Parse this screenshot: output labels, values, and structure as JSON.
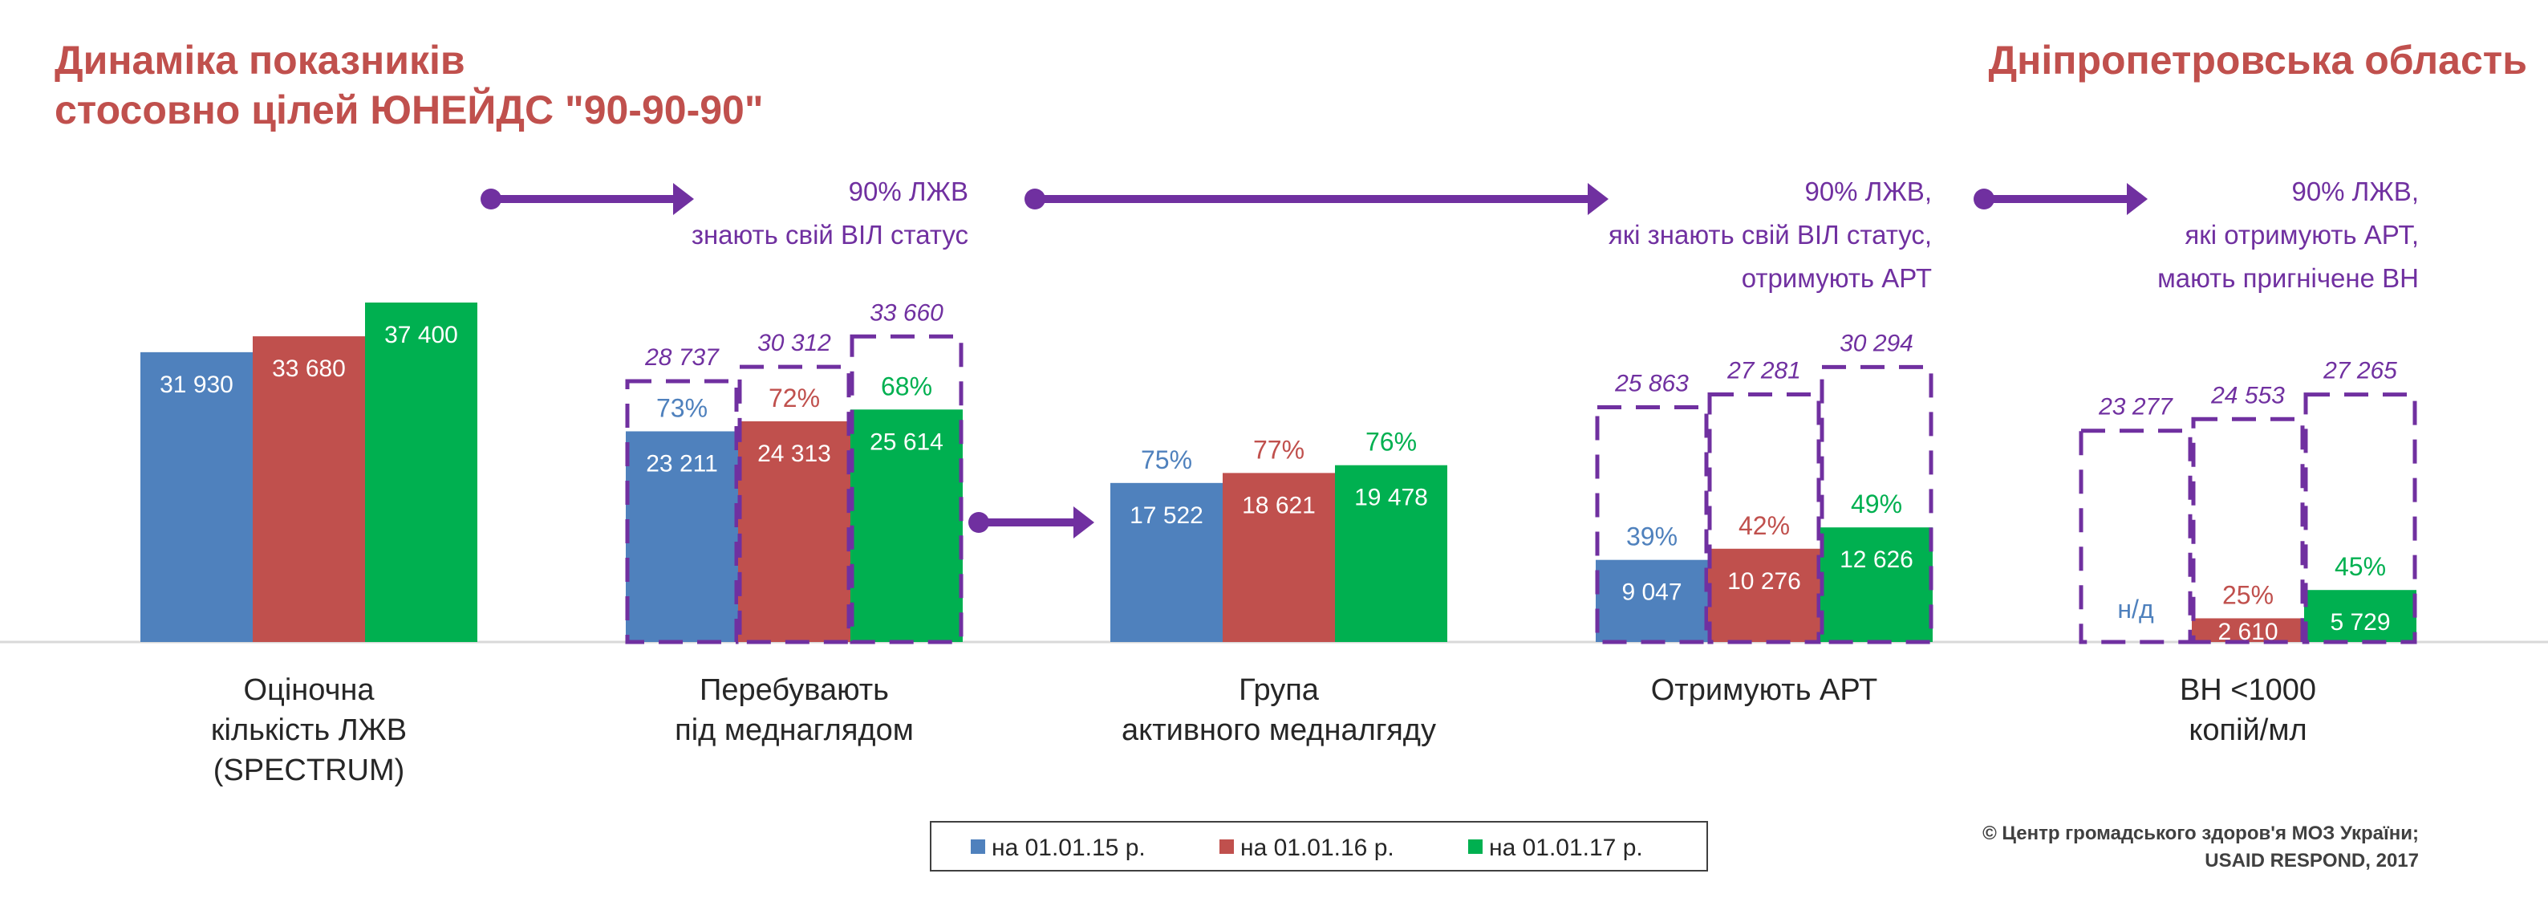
{
  "chart_data": {
    "type": "bar",
    "title": "Динаміка показників стосовно цілей ЮНЕЙДС \"90-90-90\"",
    "title_lines": [
      "Динаміка показників",
      "стосовно цілей ЮНЕЙДС \"90-90-90\""
    ],
    "region": "Дніпропетровська область",
    "colors": {
      "series": [
        "#4F81BD",
        "#C0504D",
        "#00B050"
      ],
      "accent": "#7030A0",
      "title": "#C0504D"
    },
    "series_names": [
      "на 01.01.15 р.",
      "на 01.01.16 р.",
      "на 01.01.17 р."
    ],
    "groups": [
      {
        "label_lines": [
          "Оціночна",
          "кількість ЛЖВ",
          "(SPECTRUM)"
        ],
        "values": [
          31930,
          33680,
          37400
        ],
        "value_labels": [
          "31 930",
          "33 680",
          "37 400"
        ],
        "pct": null,
        "totals": null,
        "total_labels": null
      },
      {
        "label_lines": [
          "Перебувають",
          "під меднаглядом"
        ],
        "values": [
          23211,
          24313,
          25614
        ],
        "value_labels": [
          "23 211",
          "24 313",
          "25 614"
        ],
        "pct": [
          "73%",
          "72%",
          "68%"
        ],
        "totals": [
          28737,
          30312,
          33660
        ],
        "total_labels": [
          "28 737",
          "30 312",
          "33 660"
        ]
      },
      {
        "label_lines": [
          "Група",
          "активного медналгяду"
        ],
        "values": [
          17522,
          18621,
          19478
        ],
        "value_labels": [
          "17 522",
          "18 621",
          "19 478"
        ],
        "pct": [
          "75%",
          "77%",
          "76%"
        ],
        "totals": null,
        "total_labels": null
      },
      {
        "label_lines": [
          "Отримують АРТ"
        ],
        "values": [
          9047,
          10276,
          12626
        ],
        "value_labels": [
          "9 047",
          "10 276",
          "12 626"
        ],
        "pct": [
          "39%",
          "42%",
          "49%"
        ],
        "totals": [
          25863,
          27281,
          30294
        ],
        "total_labels": [
          "25 863",
          "27 281",
          "30 294"
        ]
      },
      {
        "label_lines": [
          "ВН <1000",
          "копій/мл"
        ],
        "values": [
          null,
          2610,
          5729
        ],
        "value_labels": [
          "н/д",
          "2 610",
          "5 729"
        ],
        "pct": [
          null,
          "25%",
          "45%"
        ],
        "totals": [
          23277,
          24553,
          27265
        ],
        "total_labels": [
          "23 277",
          "24 553",
          "27 265"
        ]
      }
    ],
    "annotations": [
      {
        "lines": [
          "90% ЛЖВ",
          "знають свій ВІЛ статус"
        ]
      },
      {
        "lines": [
          "90% ЛЖВ,",
          "які знають свій ВІЛ статус,",
          "отримують АРТ"
        ]
      },
      {
        "lines": [
          "90% ЛЖВ,",
          "які отримують АРТ,",
          "мають пригнічене ВН"
        ]
      }
    ],
    "ylim": [
      0,
      40000
    ],
    "grid": false,
    "legend_position": "bottom-center",
    "source_lines": [
      "© Центр громадського здоров'я МОЗ України;",
      "USAID RESPOND, 2017"
    ]
  }
}
